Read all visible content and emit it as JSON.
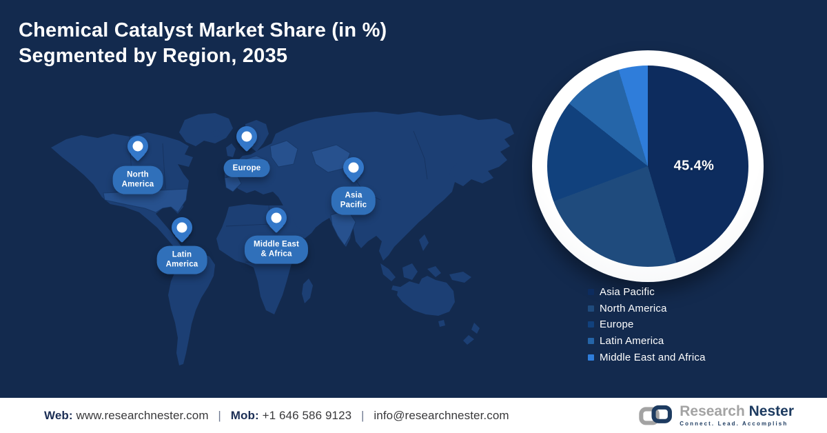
{
  "title": {
    "line1": "Chemical Catalyst Market Share (in %)",
    "line2": "Segmented by Region, 2035"
  },
  "map": {
    "regions": [
      {
        "label": "North\nAmerica"
      },
      {
        "label": "Europe"
      },
      {
        "label": "Asia\nPacific"
      },
      {
        "label": "Latin\nAmerica"
      },
      {
        "label": "Middle East\n& Africa"
      }
    ]
  },
  "chart_data": {
    "type": "pie",
    "title": "Chemical Catalyst Market Share (in %) Segmented by Region, 2035",
    "unit": "%",
    "start_angle_deg": 0,
    "direction": "clockwise",
    "legend_position": "bottom-right",
    "note": "Only the Asia Pacific slice is labeled on the chart (45.4%); other values estimated from slice angles.",
    "series": [
      {
        "name": "Asia Pacific",
        "value": 45.4,
        "color": "#0d2c5e",
        "label": "45.4%"
      },
      {
        "name": "North America",
        "value": 23.9,
        "color": "#1f4b7d",
        "label": ""
      },
      {
        "name": "Europe",
        "value": 16.4,
        "color": "#11417d",
        "label": ""
      },
      {
        "name": "Latin America",
        "value": 9.6,
        "color": "#2565a8",
        "label": ""
      },
      {
        "name": "Middle East and Africa",
        "value": 4.7,
        "color": "#2f7dda",
        "label": ""
      }
    ]
  },
  "footer": {
    "web_label": "Web:",
    "web_value": "www.researchnester.com",
    "mob_label": "Mob:",
    "mob_value": "+1 646 586 9123",
    "email": "info@researchnester.com",
    "separator": "|"
  },
  "logo": {
    "brand_part1": "Research",
    "brand_part2": "Nester",
    "tagline": "Connect. Lead. Accomplish"
  },
  "colors": {
    "background": "#132a4e",
    "map_base": "#1c3f74",
    "map_highlight": "#27518e",
    "pin": "#3478c9",
    "pill": "#3070ba",
    "footer_navy": "#1b2e55",
    "logo_gray": "#a3a3a3",
    "logo_navy": "#1d3b60"
  }
}
